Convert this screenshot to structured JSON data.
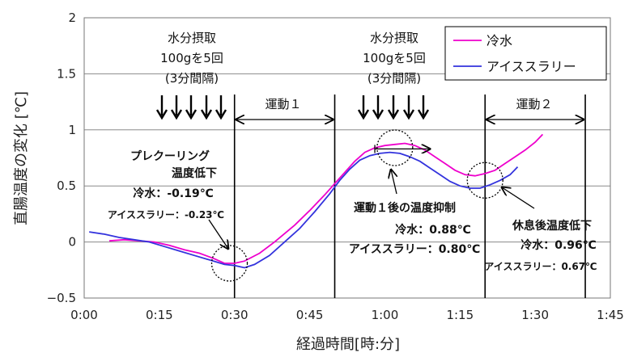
{
  "chart_data": {
    "type": "line",
    "xlabel": "経過時間[時:分]",
    "ylabel": "直腸温度の変化 [℃]",
    "xlim": [
      0,
      105
    ],
    "ylim": [
      -0.5,
      2
    ],
    "x_ticks": [
      {
        "value": 0,
        "label": "0:00"
      },
      {
        "value": 15,
        "label": "0:15"
      },
      {
        "value": 30,
        "label": "0:30"
      },
      {
        "value": 45,
        "label": "0:45"
      },
      {
        "value": 60,
        "label": "1:00"
      },
      {
        "value": 75,
        "label": "1:15"
      },
      {
        "value": 90,
        "label": "1:30"
      },
      {
        "value": 105,
        "label": "1:45"
      }
    ],
    "y_ticks": [
      {
        "value": -0.5,
        "label": "−0.5"
      },
      {
        "value": 0,
        "label": "0"
      },
      {
        "value": 0.5,
        "label": "0.5"
      },
      {
        "value": 1,
        "label": "1"
      },
      {
        "value": 1.5,
        "label": "1.5"
      },
      {
        "value": 2,
        "label": "2"
      }
    ],
    "legend_position": "top-right",
    "series": [
      {
        "name": "冷水",
        "color": "#ee00cc",
        "points": [
          [
            5,
            0.01
          ],
          [
            8,
            0.02
          ],
          [
            11,
            0.01
          ],
          [
            14,
            0.0
          ],
          [
            17,
            -0.03
          ],
          [
            20,
            -0.07
          ],
          [
            23,
            -0.1
          ],
          [
            26,
            -0.15
          ],
          [
            28,
            -0.19
          ],
          [
            30,
            -0.19
          ],
          [
            32,
            -0.17
          ],
          [
            35,
            -0.1
          ],
          [
            38,
            0.0
          ],
          [
            42,
            0.15
          ],
          [
            45,
            0.28
          ],
          [
            48,
            0.42
          ],
          [
            50,
            0.52
          ],
          [
            52,
            0.62
          ],
          [
            54,
            0.72
          ],
          [
            56,
            0.8
          ],
          [
            58,
            0.84
          ],
          [
            60,
            0.86
          ],
          [
            62,
            0.87
          ],
          [
            64,
            0.88
          ],
          [
            66,
            0.86
          ],
          [
            68,
            0.82
          ],
          [
            70,
            0.76
          ],
          [
            72,
            0.7
          ],
          [
            74,
            0.64
          ],
          [
            76,
            0.6
          ],
          [
            78,
            0.59
          ],
          [
            80,
            0.61
          ],
          [
            82,
            0.64
          ],
          [
            84,
            0.7
          ],
          [
            86,
            0.76
          ],
          [
            88,
            0.82
          ],
          [
            90,
            0.89
          ],
          [
            91.5,
            0.96
          ]
        ]
      },
      {
        "name": "アイススラリー",
        "color": "#3333dd",
        "points": [
          [
            1,
            0.09
          ],
          [
            4,
            0.07
          ],
          [
            7,
            0.04
          ],
          [
            10,
            0.02
          ],
          [
            13,
            0.0
          ],
          [
            16,
            -0.04
          ],
          [
            19,
            -0.08
          ],
          [
            22,
            -0.12
          ],
          [
            25,
            -0.16
          ],
          [
            28,
            -0.2
          ],
          [
            30,
            -0.21
          ],
          [
            32,
            -0.23
          ],
          [
            34,
            -0.2
          ],
          [
            37,
            -0.12
          ],
          [
            40,
            0.0
          ],
          [
            43,
            0.12
          ],
          [
            46,
            0.27
          ],
          [
            49,
            0.43
          ],
          [
            51,
            0.55
          ],
          [
            53,
            0.65
          ],
          [
            55,
            0.73
          ],
          [
            57,
            0.77
          ],
          [
            59,
            0.79
          ],
          [
            61,
            0.8
          ],
          [
            63,
            0.79
          ],
          [
            65,
            0.76
          ],
          [
            67,
            0.72
          ],
          [
            69,
            0.66
          ],
          [
            71,
            0.6
          ],
          [
            73,
            0.54
          ],
          [
            75,
            0.5
          ],
          [
            77,
            0.48
          ],
          [
            79,
            0.48
          ],
          [
            81,
            0.51
          ],
          [
            83,
            0.55
          ],
          [
            85,
            0.6
          ],
          [
            86.5,
            0.67
          ]
        ]
      }
    ],
    "annotations": {
      "intake1": [
        "水分摂取",
        "100gを5回",
        "(3分間隔)"
      ],
      "intake2": [
        "水分摂取",
        "100gを5回",
        "(3分間隔)"
      ],
      "exercise1": "運動１",
      "exercise2": "運動２",
      "precool": [
        "プレクーリング",
        "温度低下",
        "冷水：-0.19℃",
        "アイススラリー：-0.23℃"
      ],
      "post_ex": [
        "運動１後の温度抑制",
        "冷水：0.88℃",
        "アイススラリー：0.80℃"
      ],
      "rest": [
        "休息後温度低下",
        "冷水：0.96℃",
        "アイススラリー：0.67℃"
      ]
    }
  }
}
